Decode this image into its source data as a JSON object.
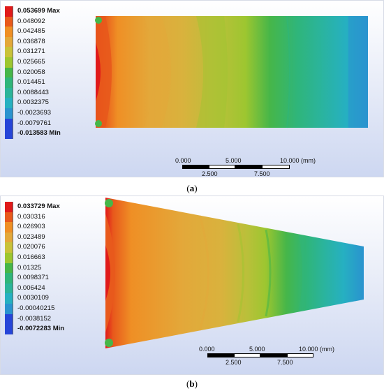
{
  "colors": {
    "red": "#e01a1a",
    "orange_red": "#e8591c",
    "orange": "#ef8f25",
    "light_orange": "#e3a83a",
    "yellow_orange": "#d9b23d",
    "yellow_green": "#b9c03a",
    "light_green": "#9dc630",
    "green": "#46b649",
    "mid_green": "#2fb57a",
    "teal": "#2bb49a",
    "cyan": "#26b0c1",
    "blue_cyan": "#2a93cf",
    "blue": "#2645d8"
  },
  "panel_a": {
    "legend": [
      {
        "value": "0.053699 Max",
        "bold": true,
        "color": "#e01a1a"
      },
      {
        "value": "0.048092",
        "bold": false,
        "color": "#e8591c"
      },
      {
        "value": "0.042485",
        "bold": false,
        "color": "#ef8f25"
      },
      {
        "value": "0.036878",
        "bold": false,
        "color": "#e3a83a"
      },
      {
        "value": "0.031271",
        "bold": false,
        "color": "#c9c23a"
      },
      {
        "value": "0.025665",
        "bold": false,
        "color": "#9dc630"
      },
      {
        "value": "0.020058",
        "bold": false,
        "color": "#46b649"
      },
      {
        "value": "0.014451",
        "bold": false,
        "color": "#2fb57a"
      },
      {
        "value": "0.0088443",
        "bold": false,
        "color": "#2bb49a"
      },
      {
        "value": "0.0032375",
        "bold": false,
        "color": "#26b0c1"
      },
      {
        "value": "-0.0023693",
        "bold": false,
        "color": "#2a93cf"
      },
      {
        "value": "-0.0079761",
        "bold": false,
        "color": "#2645d8"
      },
      {
        "value": "-0.013583 Min",
        "bold": true,
        "color": "#2645d8"
      }
    ],
    "scale": {
      "top_labels": [
        "0.000",
        "5.000",
        "10.000 (mm)"
      ],
      "bottom_labels": [
        "2.500",
        "7.500"
      ]
    }
  },
  "panel_b": {
    "legend": [
      {
        "value": "0.033729 Max",
        "bold": true,
        "color": "#e01a1a"
      },
      {
        "value": "0.030316",
        "bold": false,
        "color": "#e8591c"
      },
      {
        "value": "0.026903",
        "bold": false,
        "color": "#ef8f25"
      },
      {
        "value": "0.023489",
        "bold": false,
        "color": "#e3a83a"
      },
      {
        "value": "0.020076",
        "bold": false,
        "color": "#c9c23a"
      },
      {
        "value": "0.016663",
        "bold": false,
        "color": "#9dc630"
      },
      {
        "value": "0.01325",
        "bold": false,
        "color": "#46b649"
      },
      {
        "value": "0.0098371",
        "bold": false,
        "color": "#2fb57a"
      },
      {
        "value": "0.006424",
        "bold": false,
        "color": "#2bb49a"
      },
      {
        "value": "0.0030109",
        "bold": false,
        "color": "#26b0c1"
      },
      {
        "value": "-0.00040215",
        "bold": false,
        "color": "#2a93cf"
      },
      {
        "value": "-0.0038152",
        "bold": false,
        "color": "#2645d8"
      },
      {
        "value": "-0.0072283 Min",
        "bold": true,
        "color": "#2645d8"
      }
    ],
    "scale": {
      "top_labels": [
        "0.000",
        "5.000",
        "10.000 (mm)"
      ],
      "bottom_labels": [
        "2.500",
        "7.500"
      ]
    }
  },
  "captions": {
    "a_open": "(",
    "a_letter": "a",
    "a_close": ")",
    "b_open": "(",
    "b_letter": "b",
    "b_close": ")"
  }
}
